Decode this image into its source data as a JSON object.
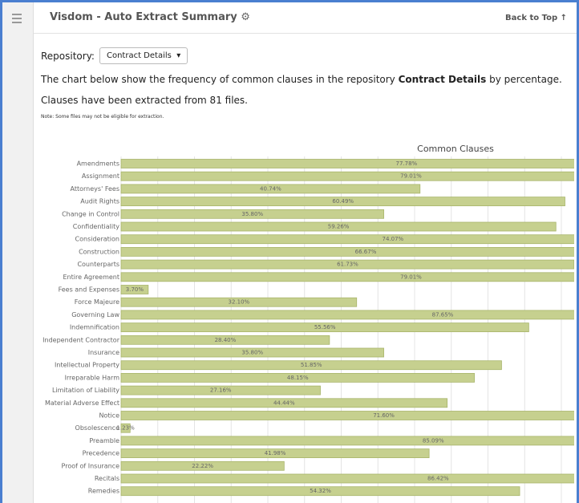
{
  "header": {
    "title": "Visdom - Auto Extract Summary",
    "back_to_top": "Back to Top"
  },
  "controls": {
    "repository_label": "Repository:",
    "repository_value": "Contract Details"
  },
  "text": {
    "intro_before": "The chart below show the frequency of common clauses in the repository",
    "intro_bold": "Contract Details",
    "intro_after": "by percentage.",
    "files": "Clauses have been extracted from 81 files.",
    "note": "Note: Some files may not be eligible for extraction."
  },
  "chart_data": {
    "type": "bar",
    "orientation": "horizontal",
    "title": "Common Clauses",
    "categories": [
      "Amendments",
      "Assignment",
      "Attorneys' Fees",
      "Audit Rights",
      "Change in Control",
      "Confidentiality",
      "Consideration",
      "Construction",
      "Counterparts",
      "Entire Agreement",
      "Fees and Expenses",
      "Force Majeure",
      "Governing Law",
      "Indemnification",
      "Independent Contractor",
      "Insurance",
      "Intellectual Property",
      "Irreparable Harm",
      "Limitation of Liability",
      "Material Adverse Effect",
      "Notice",
      "Obsolescence",
      "Preamble",
      "Precedence",
      "Proof of Insurance",
      "Recitals",
      "Remedies"
    ],
    "values": [
      77.78,
      79.01,
      40.74,
      60.49,
      35.8,
      59.26,
      74.07,
      66.67,
      61.73,
      79.01,
      3.7,
      32.1,
      87.65,
      55.56,
      28.4,
      35.8,
      51.85,
      48.15,
      27.16,
      44.44,
      71.6,
      1.23,
      85.09,
      41.98,
      22.22,
      86.42,
      54.32
    ],
    "value_labels": [
      "77.78%",
      "79.01%",
      "40.74%",
      "60.49%",
      "35.80%",
      "59.26%",
      "74.07%",
      "66.67%",
      "61.73%",
      "79.01%",
      "3.70%",
      "32.10%",
      "87.65%",
      "55.56%",
      "28.40%",
      "35.80%",
      "51.85%",
      "48.15%",
      "27.16%",
      "44.44%",
      "71.60%",
      "1.23%",
      "85.09%",
      "41.98%",
      "22.22%",
      "86.42%",
      "54.32%"
    ],
    "color": "#c6d08f",
    "xlim": [
      0,
      100
    ],
    "xticks": [
      0,
      5,
      10,
      15,
      20,
      25,
      30,
      35,
      40,
      45,
      50,
      55,
      60,
      65,
      70,
      75,
      80,
      85,
      90,
      95,
      100
    ],
    "grid": true
  }
}
